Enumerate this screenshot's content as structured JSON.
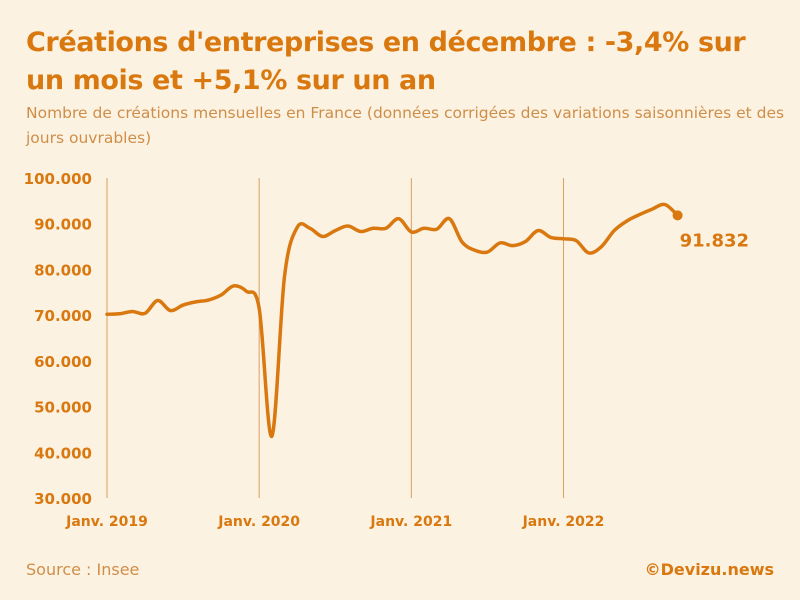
{
  "title": "Créations d'entreprises en décembre : -3,4% sur un mois et +5,1% sur un an",
  "subtitle": "Nombre de créations mensuelles en France (données corrigées des variations saisonnières et des jours ouvrables)",
  "source": "Source : Insee",
  "brand": "©Devizu.news",
  "colors": {
    "line": "#d9780f",
    "text": "#d9780f",
    "muted": "#cf8e48",
    "background": "#fcf2e2",
    "grid": "#d9a060"
  },
  "chart_data": {
    "type": "line",
    "title": "Créations d'entreprises en décembre : -3,4% sur un mois et +5,1% sur un an",
    "xlabel": "",
    "ylabel": "",
    "ylim": [
      30000,
      100000
    ],
    "xlim": [
      0,
      47
    ],
    "y_ticks": [
      {
        "value": 100000,
        "label": "100.000"
      },
      {
        "value": 90000,
        "label": "90.000"
      },
      {
        "value": 80000,
        "label": "80.000"
      },
      {
        "value": 70000,
        "label": "70.000"
      },
      {
        "value": 60000,
        "label": "60.000"
      },
      {
        "value": 50000,
        "label": "50.000"
      },
      {
        "value": 40000,
        "label": "40.000"
      },
      {
        "value": 30000,
        "label": "30.000"
      }
    ],
    "x_ticks": [
      {
        "index": 0,
        "label": "Janv. 2019"
      },
      {
        "index": 12,
        "label": "Janv. 2020"
      },
      {
        "index": 24,
        "label": "Janv. 2021"
      },
      {
        "index": 36,
        "label": "Janv. 2022"
      }
    ],
    "grid": "vertical lines at January of each year",
    "series": [
      {
        "name": "Créations mensuelles",
        "values": [
          70200,
          70300,
          70800,
          70400,
          73200,
          71000,
          72200,
          72900,
          73300,
          74400,
          76400,
          75200,
          71500,
          43500,
          78500,
          89200,
          89000,
          87200,
          88500,
          89500,
          88300,
          89000,
          89000,
          91100,
          88200,
          89000,
          88800,
          91100,
          86000,
          84200,
          83800,
          85800,
          85200,
          86100,
          88500,
          87000,
          86700,
          86300,
          83600,
          85000,
          88500,
          90600,
          92000,
          93200,
          94200,
          91832
        ],
        "end_label": "91.832"
      }
    ]
  }
}
